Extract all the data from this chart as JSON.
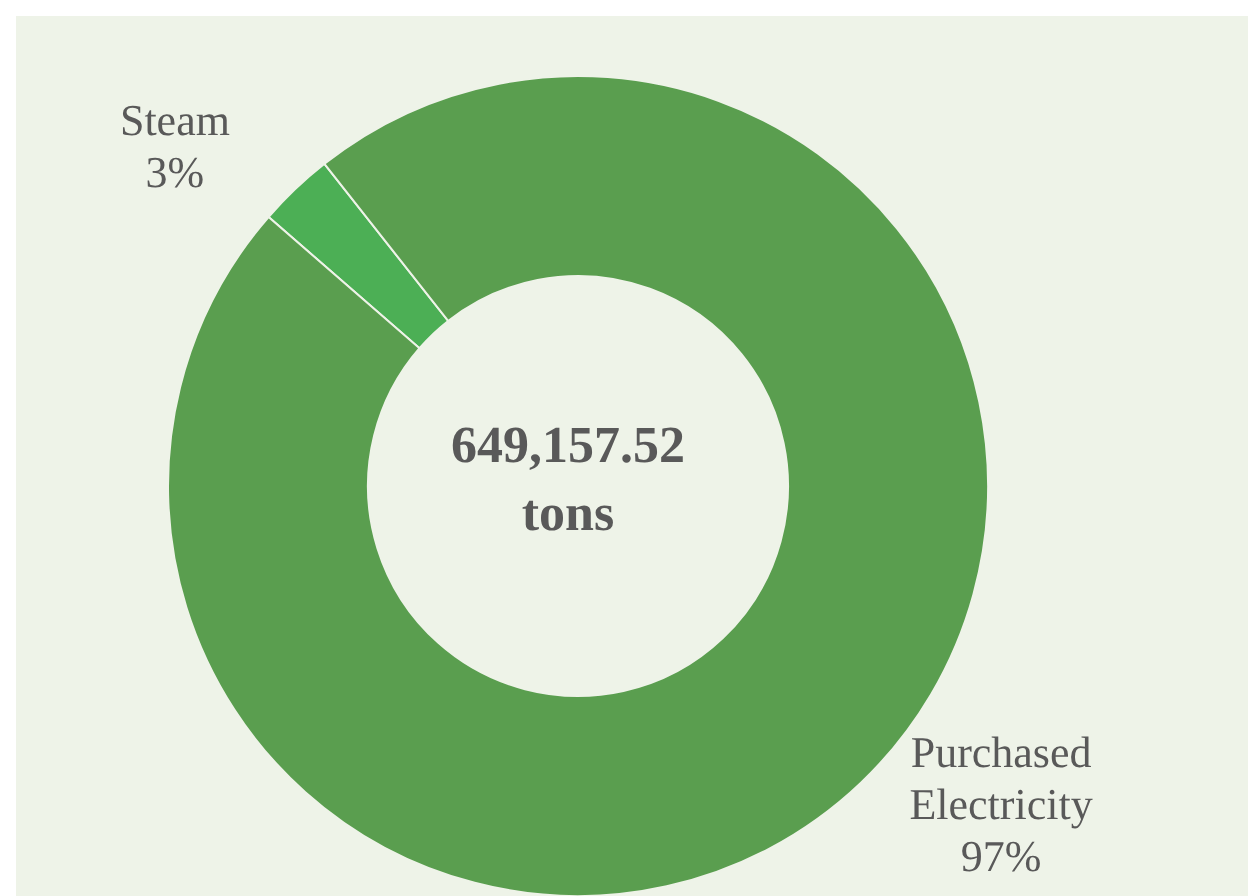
{
  "chart_data": {
    "type": "donut",
    "categories": [
      "Steam",
      "Purchased Electricity"
    ],
    "values": [
      3,
      97
    ],
    "colors": [
      "#4caf55",
      "#5a9e4f"
    ],
    "value_labels": [
      "3%",
      "97%"
    ],
    "annotations": [
      "649,157.52",
      "tons"
    ]
  }
}
